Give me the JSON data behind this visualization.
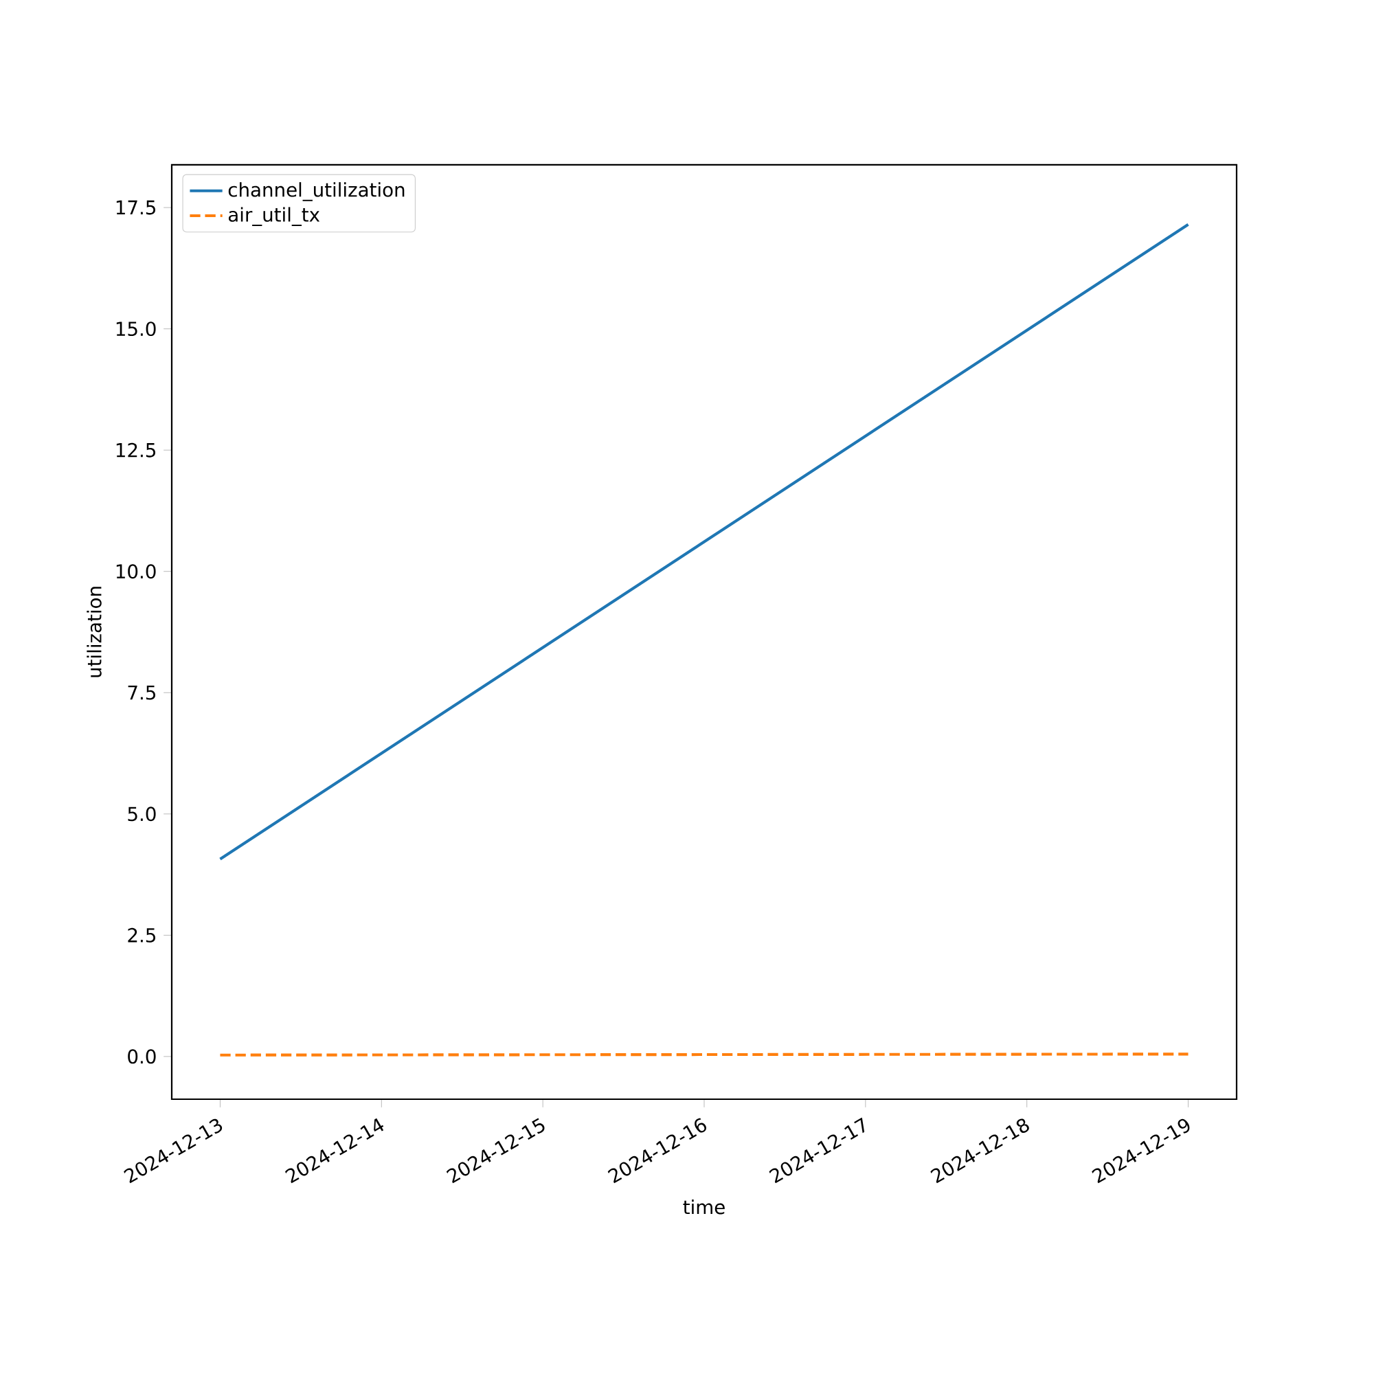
{
  "chart_data": {
    "type": "line",
    "xlabel": "time",
    "ylabel": "utilization",
    "x": [
      "2024-12-13",
      "2024-12-19"
    ],
    "series": [
      {
        "name": "channel_utilization",
        "color": "#1f77b4",
        "values": [
          4.07,
          17.15
        ],
        "line_style": "solid"
      },
      {
        "name": "air_util_tx",
        "color": "#ff7f0e",
        "values": [
          0.03,
          0.05
        ],
        "line_style": "dashed"
      }
    ],
    "xlim": [
      "2024-12-12T16:48",
      "2024-12-19T07:12"
    ],
    "xticks": [
      "2024-12-13",
      "2024-12-14",
      "2024-12-15",
      "2024-12-16",
      "2024-12-17",
      "2024-12-18",
      "2024-12-19"
    ],
    "ylim": [
      -0.88,
      18.38
    ],
    "yticks": [
      {
        "value": 0,
        "label": "0.0"
      },
      {
        "value": 2.5,
        "label": "2.5"
      },
      {
        "value": 5,
        "label": "5.0"
      },
      {
        "value": 7.5,
        "label": "7.5"
      },
      {
        "value": 10,
        "label": "10.0"
      },
      {
        "value": 12.5,
        "label": "12.5"
      },
      {
        "value": 15,
        "label": "15.0"
      },
      {
        "value": 17.5,
        "label": "17.5"
      }
    ],
    "grid": false,
    "legend": "top left",
    "marker": "none"
  }
}
